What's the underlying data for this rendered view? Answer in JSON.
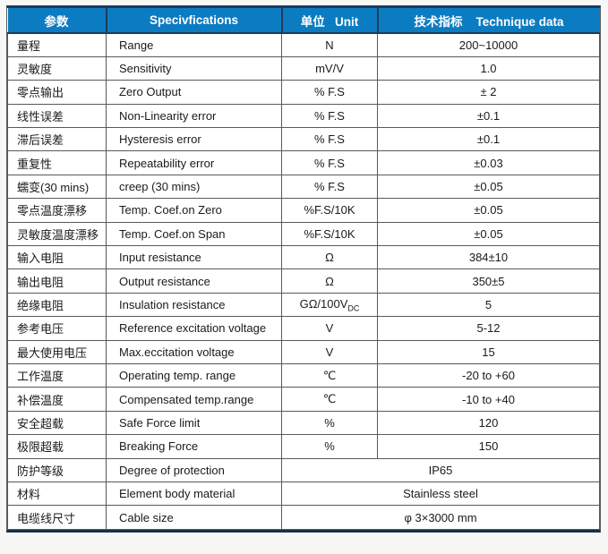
{
  "colors": {
    "page_bg": "#f7f7f6",
    "header_bg": "#0b7cc2",
    "header_border": "#1c3b5a",
    "grid_line": "#59595b",
    "text": "#1a1a1a"
  },
  "table": {
    "header": {
      "param": "参数",
      "spec": "Specivfications",
      "unit": "单位   Unit",
      "data": "技术指标    Technique data"
    },
    "rows": [
      {
        "cn": "量程",
        "en": "Range",
        "unit": "N",
        "value": "200~10000"
      },
      {
        "cn": "灵敏度",
        "en": "Sensitivity",
        "unit": "mV/V",
        "value": "1.0"
      },
      {
        "cn": "零点输出",
        "en": "Zero Output",
        "unit": "% F.S",
        "value": "± 2"
      },
      {
        "cn": "线性误差",
        "en": "Non-Linearity error",
        "unit": "% F.S",
        "value": "±0.1"
      },
      {
        "cn": "滞后误差",
        "en": "Hysteresis error",
        "unit": "% F.S",
        "value": "±0.1"
      },
      {
        "cn": "重复性",
        "en": "Repeatability error",
        "unit": "% F.S",
        "value": "±0.03"
      },
      {
        "cn": "蠕变(30 mins)",
        "en": "creep (30 mins)",
        "unit": "% F.S",
        "value": "±0.05"
      },
      {
        "cn": "零点温度漂移",
        "en": "Temp. Coef.on Zero",
        "unit": "%F.S/10K",
        "value": "±0.05"
      },
      {
        "cn": "灵敏度温度漂移",
        "en": "Temp. Coef.on Span",
        "unit": "%F.S/10K",
        "value": "±0.05"
      },
      {
        "cn": "输入电阻",
        "en": "Input resistance",
        "unit": "Ω",
        "value": "384±10"
      },
      {
        "cn": "输出电阻",
        "en": "Output resistance",
        "unit": "Ω",
        "value": "350±5"
      },
      {
        "cn": "绝缘电阻",
        "en": "Insulation resistance",
        "unit": "GΩ/100V",
        "unit_sub": "DC",
        "value": "5"
      },
      {
        "cn": "参考电压",
        "en": "Reference excitation voltage",
        "unit": "V",
        "value": "5-12"
      },
      {
        "cn": "最大使用电压",
        "en": "Max.eccitation voltage",
        "unit": "V",
        "value": "15"
      },
      {
        "cn": "工作温度",
        "en": "Operating temp. range",
        "unit": "℃",
        "value": "-20 to +60"
      },
      {
        "cn": "补偿温度",
        "en": "Compensated temp.range",
        "unit": "℃",
        "value": "-10 to +40"
      },
      {
        "cn": "安全超载",
        "en": "Safe Force limit",
        "unit": "%",
        "value": "120"
      },
      {
        "cn": "极限超载",
        "en": "Breaking Force",
        "unit": "%",
        "value": "150"
      },
      {
        "cn": "防护等级",
        "en": "Degree of protection",
        "merged": true,
        "value": "IP65"
      },
      {
        "cn": "材料",
        "en": "Element body material",
        "merged": true,
        "value": "Stainless steel"
      },
      {
        "cn": "电缆线尺寸",
        "en": "Cable size",
        "merged": true,
        "value": "φ 3×3000 mm"
      }
    ]
  }
}
